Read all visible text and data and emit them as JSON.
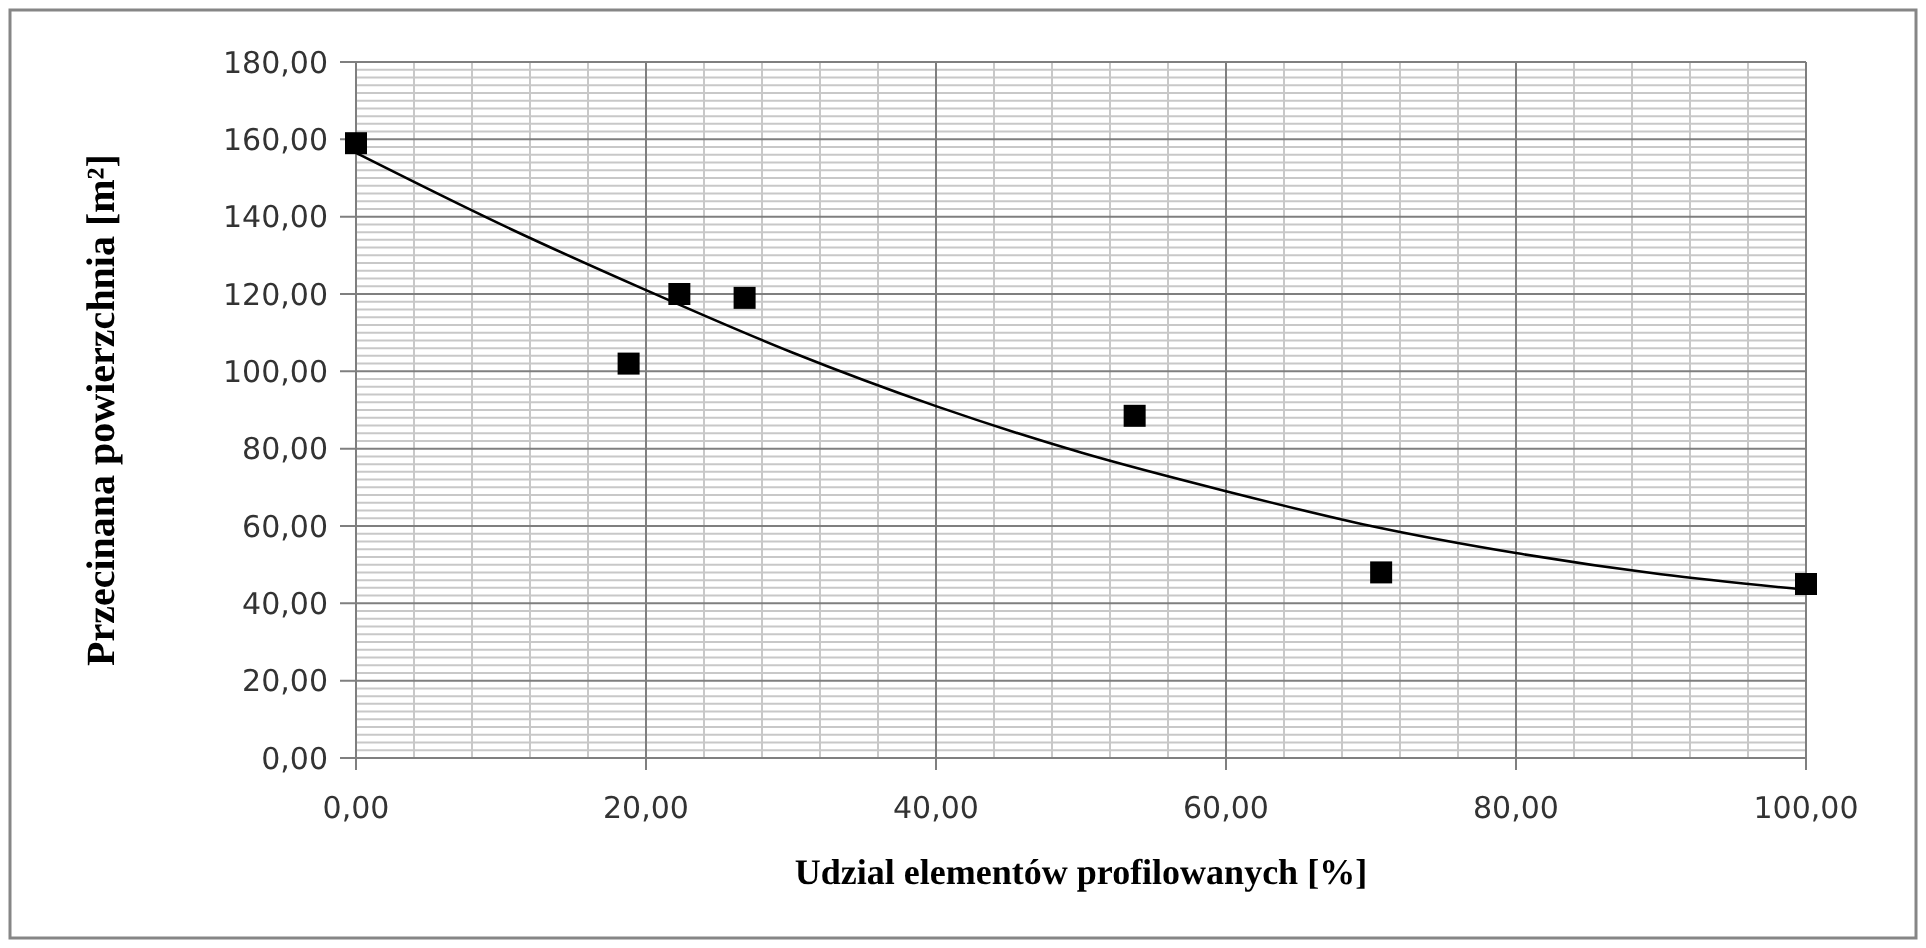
{
  "chart_data": {
    "type": "scatter",
    "xlabel": "Udzial elementów profilowanych [%]",
    "ylabel": "Przecinana powierzchnia  [m²]",
    "xlim": [
      0,
      100
    ],
    "ylim": [
      0,
      180
    ],
    "xticks": [
      {
        "value": 0,
        "label": "0,00"
      },
      {
        "value": 20,
        "label": "20,00"
      },
      {
        "value": 40,
        "label": "40,00"
      },
      {
        "value": 60,
        "label": "60,00"
      },
      {
        "value": 80,
        "label": "80,00"
      },
      {
        "value": 100,
        "label": "100,00"
      }
    ],
    "yticks": [
      {
        "value": 0,
        "label": "0,00"
      },
      {
        "value": 20,
        "label": "20,00"
      },
      {
        "value": 40,
        "label": "40,00"
      },
      {
        "value": 60,
        "label": "60,00"
      },
      {
        "value": 80,
        "label": "80,00"
      },
      {
        "value": 100,
        "label": "100,00"
      },
      {
        "value": 120,
        "label": "120,00"
      },
      {
        "value": 140,
        "label": "140,00"
      },
      {
        "value": 160,
        "label": "160,00"
      },
      {
        "value": 180,
        "label": "180,00"
      }
    ],
    "grid": true,
    "series": [
      {
        "color": "#000000",
        "marker": "square",
        "x": [
          0,
          18.8,
          22.3,
          26.8,
          53.7,
          70.7,
          100
        ],
        "values": [
          159,
          102,
          120,
          119,
          88.5,
          48,
          45
        ]
      },
      {
        "type": "line",
        "color": "#000000",
        "marker": "none",
        "line_style": "solid",
        "x": [
          0,
          10,
          20,
          30,
          40,
          50,
          60,
          70,
          80,
          90,
          100
        ],
        "values": [
          156.5,
          138,
          121,
          105,
          91,
          79,
          69,
          60,
          53,
          47.5,
          43.5
        ]
      }
    ]
  }
}
